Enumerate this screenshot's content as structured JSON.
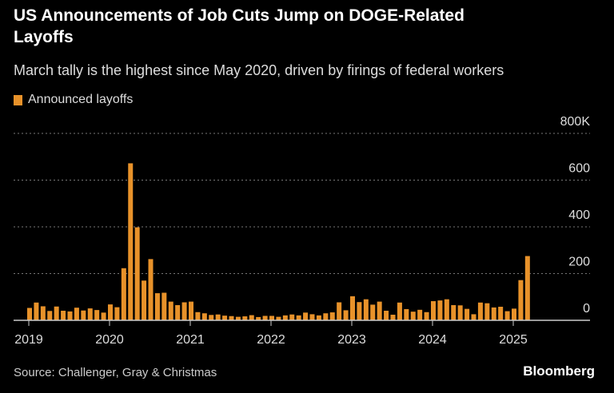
{
  "title": "US Announcements of Job Cuts Jump on DOGE-Related Layoffs",
  "subtitle": "March tally is the highest since May 2020, driven by firings of federal workers",
  "source": "Source: Challenger, Gray & Christmas",
  "brand": "Bloomberg",
  "chart_data": {
    "type": "bar",
    "legend": [
      {
        "name": "Announced layoffs",
        "color": "#e8922a"
      }
    ],
    "legend_position": "top-left",
    "ylim": [
      0,
      800
    ],
    "y_ticks": [
      "0",
      "200",
      "400",
      "600",
      "800K"
    ],
    "y_tick_values": [
      0,
      200,
      400,
      600,
      800
    ],
    "y_unit": "thousands",
    "x_ticks": [
      "2019",
      "2020",
      "2021",
      "2022",
      "2023",
      "2024",
      "2025"
    ],
    "grid": true,
    "start": "2019-01",
    "series": [
      {
        "name": "Announced layoffs",
        "values": [
          53,
          76,
          60,
          40,
          59,
          41,
          38,
          54,
          42,
          51,
          44,
          33,
          68,
          56,
          223,
          672,
          398,
          170,
          262,
          116,
          118,
          80,
          65,
          77,
          80,
          35,
          30,
          23,
          25,
          20,
          18,
          15,
          17,
          22,
          14,
          19,
          19,
          15,
          21,
          25,
          21,
          33,
          26,
          21,
          30,
          34,
          77,
          43,
          103,
          78,
          90,
          67,
          80,
          41,
          24,
          76,
          48,
          37,
          45,
          35,
          82,
          85,
          90,
          65,
          64,
          49,
          26,
          76,
          73,
          55,
          58,
          39,
          50,
          172,
          275
        ]
      }
    ]
  }
}
